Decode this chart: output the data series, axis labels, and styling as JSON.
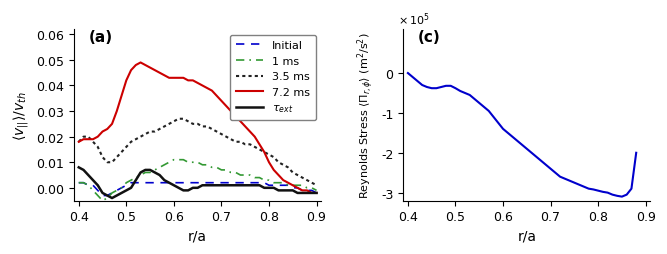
{
  "left_panel": {
    "label": "(a)",
    "xlabel": "r/a",
    "ylabel": "<v_{||}>/v_{th}",
    "xlim": [
      0.39,
      0.91
    ],
    "ylim": [
      -0.005,
      0.062
    ],
    "yticks": [
      0.0,
      0.01,
      0.02,
      0.03,
      0.04,
      0.05,
      0.06
    ],
    "xticks": [
      0.4,
      0.5,
      0.6,
      0.7,
      0.8,
      0.9
    ],
    "curves": {
      "initial": {
        "color": "#0000CC",
        "linestyle": "dashed",
        "linewidth": 1.2,
        "x": [
          0.4,
          0.41,
          0.42,
          0.43,
          0.44,
          0.45,
          0.46,
          0.47,
          0.48,
          0.49,
          0.5,
          0.51,
          0.52,
          0.53,
          0.54,
          0.55,
          0.56,
          0.57,
          0.58,
          0.59,
          0.6,
          0.61,
          0.62,
          0.63,
          0.64,
          0.65,
          0.66,
          0.67,
          0.68,
          0.69,
          0.7,
          0.71,
          0.72,
          0.73,
          0.74,
          0.75,
          0.76,
          0.77,
          0.78,
          0.79,
          0.8,
          0.81,
          0.82,
          0.83,
          0.84,
          0.85,
          0.86,
          0.87,
          0.88,
          0.89,
          0.9
        ],
        "y": [
          0.002,
          0.002,
          0.001,
          0.001,
          -0.001,
          -0.003,
          -0.003,
          -0.002,
          -0.001,
          0.0,
          0.001,
          0.002,
          0.002,
          0.002,
          0.002,
          0.002,
          0.002,
          0.002,
          0.002,
          0.002,
          0.002,
          0.002,
          0.002,
          0.002,
          0.002,
          0.002,
          0.002,
          0.002,
          0.002,
          0.002,
          0.002,
          0.002,
          0.002,
          0.002,
          0.002,
          0.002,
          0.002,
          0.002,
          0.002,
          0.002,
          0.001,
          0.001,
          0.001,
          0.001,
          0.001,
          0.0,
          0.0,
          -0.001,
          -0.001,
          -0.001,
          -0.002
        ]
      },
      "1ms": {
        "color": "#339933",
        "linestyle": "dashdot",
        "linewidth": 1.2,
        "x": [
          0.4,
          0.41,
          0.42,
          0.43,
          0.44,
          0.45,
          0.46,
          0.47,
          0.48,
          0.49,
          0.5,
          0.51,
          0.52,
          0.53,
          0.54,
          0.55,
          0.56,
          0.57,
          0.58,
          0.59,
          0.6,
          0.61,
          0.62,
          0.63,
          0.64,
          0.65,
          0.66,
          0.67,
          0.68,
          0.69,
          0.7,
          0.71,
          0.72,
          0.73,
          0.74,
          0.75,
          0.76,
          0.77,
          0.78,
          0.79,
          0.8,
          0.81,
          0.82,
          0.83,
          0.84,
          0.85,
          0.86,
          0.87,
          0.88,
          0.89,
          0.9
        ],
        "y": [
          0.002,
          0.002,
          0.001,
          -0.001,
          -0.003,
          -0.005,
          -0.004,
          -0.002,
          -0.001,
          0.0,
          0.002,
          0.003,
          0.004,
          0.005,
          0.006,
          0.006,
          0.007,
          0.008,
          0.009,
          0.01,
          0.011,
          0.011,
          0.011,
          0.01,
          0.01,
          0.01,
          0.009,
          0.009,
          0.008,
          0.008,
          0.007,
          0.007,
          0.006,
          0.006,
          0.005,
          0.005,
          0.005,
          0.004,
          0.004,
          0.003,
          0.003,
          0.002,
          0.002,
          0.002,
          0.001,
          0.001,
          0.001,
          0.001,
          0.0,
          0.0,
          -0.001
        ]
      },
      "3p5ms": {
        "color": "#222222",
        "linestyle": "dotted",
        "linewidth": 1.5,
        "x": [
          0.4,
          0.41,
          0.42,
          0.43,
          0.44,
          0.45,
          0.46,
          0.47,
          0.48,
          0.49,
          0.5,
          0.51,
          0.52,
          0.53,
          0.54,
          0.55,
          0.56,
          0.57,
          0.58,
          0.59,
          0.6,
          0.61,
          0.62,
          0.63,
          0.64,
          0.65,
          0.66,
          0.67,
          0.68,
          0.69,
          0.7,
          0.71,
          0.72,
          0.73,
          0.74,
          0.75,
          0.76,
          0.77,
          0.78,
          0.79,
          0.8,
          0.81,
          0.82,
          0.83,
          0.84,
          0.85,
          0.86,
          0.87,
          0.88,
          0.89,
          0.9
        ],
        "y": [
          0.018,
          0.02,
          0.02,
          0.018,
          0.016,
          0.012,
          0.01,
          0.01,
          0.012,
          0.014,
          0.016,
          0.018,
          0.019,
          0.02,
          0.021,
          0.022,
          0.022,
          0.023,
          0.024,
          0.025,
          0.026,
          0.027,
          0.027,
          0.026,
          0.025,
          0.025,
          0.024,
          0.024,
          0.023,
          0.022,
          0.021,
          0.02,
          0.019,
          0.018,
          0.018,
          0.017,
          0.017,
          0.016,
          0.015,
          0.014,
          0.013,
          0.012,
          0.01,
          0.009,
          0.008,
          0.006,
          0.005,
          0.004,
          0.003,
          0.002,
          0.001
        ]
      },
      "7p2ms": {
        "color": "#CC0000",
        "linestyle": "solid",
        "linewidth": 1.5,
        "x": [
          0.4,
          0.41,
          0.42,
          0.43,
          0.44,
          0.45,
          0.46,
          0.47,
          0.48,
          0.49,
          0.5,
          0.51,
          0.52,
          0.53,
          0.54,
          0.55,
          0.56,
          0.57,
          0.58,
          0.59,
          0.6,
          0.61,
          0.62,
          0.63,
          0.64,
          0.65,
          0.66,
          0.67,
          0.68,
          0.69,
          0.7,
          0.71,
          0.72,
          0.73,
          0.74,
          0.75,
          0.76,
          0.77,
          0.78,
          0.79,
          0.8,
          0.81,
          0.82,
          0.83,
          0.84,
          0.85,
          0.86,
          0.87,
          0.88,
          0.89,
          0.9
        ],
        "y": [
          0.018,
          0.019,
          0.019,
          0.019,
          0.02,
          0.022,
          0.023,
          0.025,
          0.03,
          0.036,
          0.042,
          0.046,
          0.048,
          0.049,
          0.048,
          0.047,
          0.046,
          0.045,
          0.044,
          0.043,
          0.043,
          0.043,
          0.043,
          0.042,
          0.042,
          0.041,
          0.04,
          0.039,
          0.038,
          0.036,
          0.034,
          0.032,
          0.03,
          0.028,
          0.026,
          0.024,
          0.022,
          0.02,
          0.017,
          0.014,
          0.01,
          0.007,
          0.005,
          0.003,
          0.002,
          0.001,
          0.0,
          -0.001,
          -0.001,
          -0.002,
          -0.002
        ]
      },
      "tau_ext": {
        "color": "#111111",
        "linestyle": "solid",
        "linewidth": 1.8,
        "x": [
          0.4,
          0.41,
          0.42,
          0.43,
          0.44,
          0.45,
          0.46,
          0.47,
          0.48,
          0.49,
          0.5,
          0.51,
          0.52,
          0.53,
          0.54,
          0.55,
          0.56,
          0.57,
          0.58,
          0.59,
          0.6,
          0.61,
          0.62,
          0.63,
          0.64,
          0.65,
          0.66,
          0.67,
          0.68,
          0.69,
          0.7,
          0.71,
          0.72,
          0.73,
          0.74,
          0.75,
          0.76,
          0.77,
          0.78,
          0.79,
          0.8,
          0.81,
          0.82,
          0.83,
          0.84,
          0.85,
          0.86,
          0.87,
          0.88,
          0.89,
          0.9
        ],
        "y": [
          0.008,
          0.007,
          0.005,
          0.003,
          0.001,
          -0.002,
          -0.003,
          -0.004,
          -0.003,
          -0.002,
          -0.001,
          0.0,
          0.003,
          0.006,
          0.007,
          0.007,
          0.006,
          0.005,
          0.003,
          0.002,
          0.001,
          0.0,
          -0.001,
          -0.001,
          0.0,
          0.0,
          0.001,
          0.001,
          0.001,
          0.001,
          0.001,
          0.001,
          0.001,
          0.001,
          0.001,
          0.001,
          0.001,
          0.001,
          0.001,
          0.0,
          0.0,
          0.0,
          -0.001,
          -0.001,
          -0.001,
          -0.001,
          -0.002,
          -0.002,
          -0.002,
          -0.002,
          -0.002
        ]
      }
    }
  },
  "right_panel": {
    "label": "(c)",
    "xlabel": "r/a",
    "xlim": [
      0.39,
      0.91
    ],
    "ylim_raw": [
      -3.2,
      1.1
    ],
    "yticks_raw": [
      -3,
      -2,
      -1,
      0
    ],
    "xticks": [
      0.4,
      0.5,
      0.6,
      0.7,
      0.8,
      0.9
    ],
    "color": "#0000CC",
    "linewidth": 1.5,
    "x": [
      0.4,
      0.41,
      0.42,
      0.43,
      0.44,
      0.45,
      0.46,
      0.47,
      0.48,
      0.49,
      0.5,
      0.51,
      0.52,
      0.53,
      0.54,
      0.55,
      0.56,
      0.57,
      0.58,
      0.59,
      0.6,
      0.61,
      0.62,
      0.63,
      0.64,
      0.65,
      0.66,
      0.67,
      0.68,
      0.69,
      0.7,
      0.71,
      0.72,
      0.73,
      0.74,
      0.75,
      0.76,
      0.77,
      0.78,
      0.79,
      0.8,
      0.81,
      0.82,
      0.83,
      0.84,
      0.85,
      0.86,
      0.87,
      0.88
    ],
    "y_raw": [
      0.0,
      -0.1,
      -0.2,
      -0.3,
      -0.35,
      -0.38,
      -0.38,
      -0.35,
      -0.32,
      -0.32,
      -0.38,
      -0.45,
      -0.5,
      -0.55,
      -0.65,
      -0.75,
      -0.85,
      -0.95,
      -1.1,
      -1.25,
      -1.4,
      -1.5,
      -1.6,
      -1.7,
      -1.8,
      -1.9,
      -2.0,
      -2.1,
      -2.2,
      -2.3,
      -2.4,
      -2.5,
      -2.6,
      -2.65,
      -2.7,
      -2.75,
      -2.8,
      -2.85,
      -2.9,
      -2.92,
      -2.95,
      -2.98,
      -3.0,
      -3.05,
      -3.08,
      -3.1,
      -3.05,
      -2.9,
      -2.0
    ]
  }
}
